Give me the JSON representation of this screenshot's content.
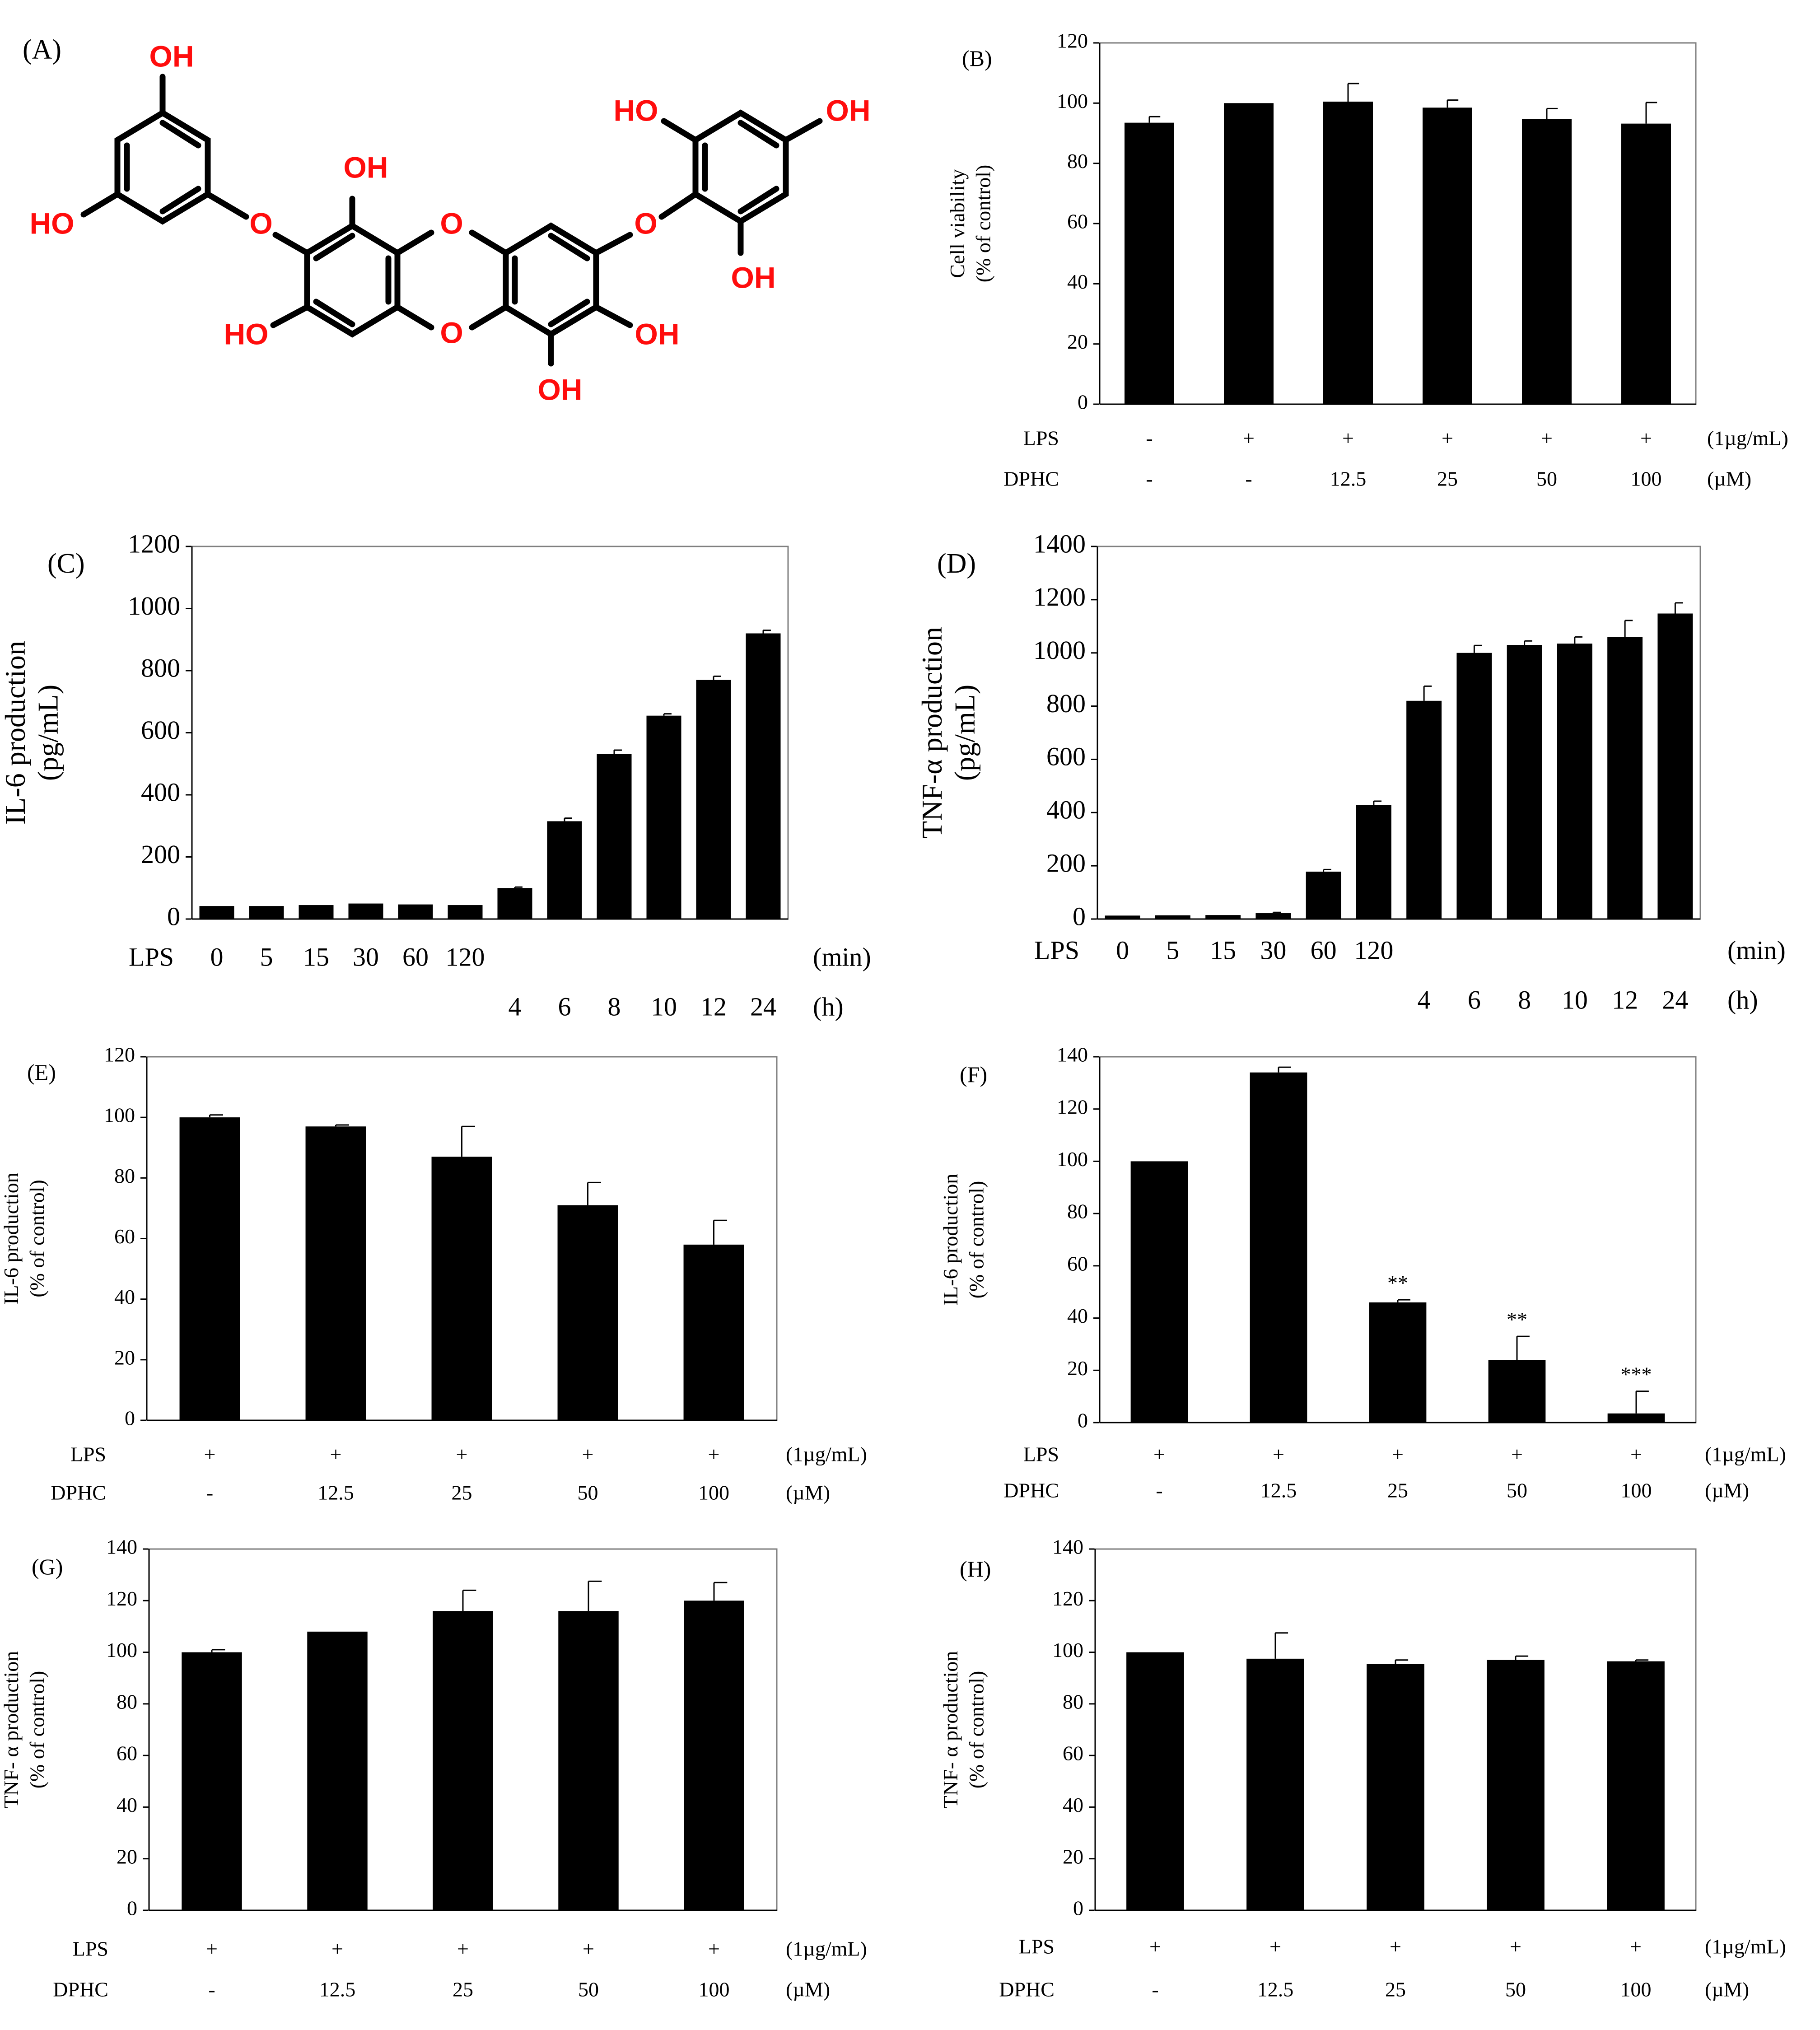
{
  "figure": {
    "panel_labels": [
      "(A)",
      "(B)",
      "(C)",
      "(D)",
      "(E)",
      "(F)",
      "(G)",
      "(H)"
    ]
  },
  "molecule": {
    "atom_labels": [
      "OH",
      "HO",
      "O",
      "OH",
      "O",
      "O",
      "O",
      "HO",
      "OH",
      "HO",
      "OH",
      "OH",
      "OH"
    ],
    "atom_color": "#ff0d0d",
    "bond_color": "#000000"
  },
  "chart_data": [
    {
      "id": "B",
      "type": "bar",
      "label": "(B)",
      "ylabel": [
        "Cell viability",
        "(% of control)"
      ],
      "ylim": [
        0,
        120
      ],
      "yticks": [
        0,
        20,
        40,
        60,
        80,
        100,
        120
      ],
      "values": [
        93.5,
        100,
        100.5,
        98.5,
        94.7,
        93.2
      ],
      "errors": [
        2,
        0,
        6,
        2.5,
        3.5,
        7
      ],
      "rows": [
        {
          "name": "LPS",
          "values": [
            "-",
            "+",
            "+",
            "+",
            "+",
            "+"
          ],
          "unit": "(1µg/mL)"
        },
        {
          "name": "DPHC",
          "values": [
            "-",
            "-",
            "12.5",
            "25",
            "50",
            "100"
          ],
          "unit": "(µM)"
        }
      ],
      "annotations": [
        "",
        "",
        "",
        "",
        "",
        ""
      ],
      "bar_color": "#000000"
    },
    {
      "id": "C",
      "type": "bar",
      "label": "(C)",
      "ylabel": [
        "IL-6 production",
        "(pg/mL)"
      ],
      "ylim": [
        0,
        1200
      ],
      "yticks": [
        0,
        200,
        400,
        600,
        800,
        1000,
        1200
      ],
      "values": [
        42,
        42,
        45,
        50,
        47,
        45,
        100,
        315,
        532,
        655,
        770,
        920
      ],
      "errors": [
        0,
        0,
        0,
        0,
        0,
        0,
        3,
        10,
        12,
        6,
        12,
        10
      ],
      "categories_min": [
        "0",
        "5",
        "15",
        "30",
        "60",
        "120"
      ],
      "categories_h": [
        "4",
        "6",
        "8",
        "10",
        "12",
        "24"
      ],
      "row_label": "LPS",
      "unit_min": "(min)",
      "unit_h": "(h)",
      "bar_color": "#000000"
    },
    {
      "id": "D",
      "type": "bar",
      "label": "(D)",
      "ylabel": [
        "TNF-α production",
        "(pg/mL)"
      ],
      "ylim": [
        0,
        1400
      ],
      "yticks": [
        0,
        200,
        400,
        600,
        800,
        1000,
        1200,
        1400
      ],
      "values": [
        13,
        14,
        15,
        22,
        178,
        428,
        820,
        1000,
        1030,
        1035,
        1060,
        1148
      ],
      "errors": [
        0,
        0,
        0,
        3,
        8,
        15,
        55,
        28,
        15,
        25,
        62,
        40
      ],
      "categories_min": [
        "0",
        "5",
        "15",
        "30",
        "60",
        "120"
      ],
      "categories_h": [
        "4",
        "6",
        "8",
        "10",
        "12",
        "24"
      ],
      "row_label": "LPS",
      "unit_min": "(min)",
      "unit_h": "(h)",
      "bar_color": "#000000"
    },
    {
      "id": "E",
      "type": "bar",
      "label": "(E)",
      "ylabel": [
        "IL-6 production",
        "(% of control)"
      ],
      "ylim": [
        0,
        120
      ],
      "yticks": [
        0,
        20,
        40,
        60,
        80,
        100,
        120
      ],
      "values": [
        100,
        97,
        87,
        71,
        58
      ],
      "errors": [
        0.8,
        0.5,
        10,
        7.5,
        8
      ],
      "rows": [
        {
          "name": "LPS",
          "values": [
            "+",
            "+",
            "+",
            "+",
            "+"
          ],
          "unit": "(1µg/mL)"
        },
        {
          "name": "DPHC",
          "values": [
            "-",
            "12.5",
            "25",
            "50",
            "100"
          ],
          "unit": "(µM)"
        }
      ],
      "annotations": [
        "",
        "",
        "",
        "",
        ""
      ],
      "bar_color": "#000000"
    },
    {
      "id": "F",
      "type": "bar",
      "label": "(F)",
      "ylabel": [
        "IL-6 production",
        "(% of control)"
      ],
      "ylim": [
        0,
        140
      ],
      "yticks": [
        0,
        20,
        40,
        60,
        80,
        100,
        120,
        140
      ],
      "values": [
        100,
        134,
        46,
        24,
        3.5
      ],
      "errors": [
        0,
        2,
        1,
        9,
        8.5
      ],
      "rows": [
        {
          "name": "LPS",
          "values": [
            "+",
            "+",
            "+",
            "+",
            "+"
          ],
          "unit": "(1µg/mL)"
        },
        {
          "name": "DPHC",
          "values": [
            "-",
            "12.5",
            "25",
            "50",
            "100"
          ],
          "unit": "(µM)"
        }
      ],
      "annotations": [
        "",
        "",
        "**",
        "**",
        "***"
      ],
      "bar_color": "#000000"
    },
    {
      "id": "G",
      "type": "bar",
      "label": "(G)",
      "ylabel": [
        "TNF- α production",
        "(% of control)"
      ],
      "ylim": [
        0,
        140
      ],
      "yticks": [
        0,
        20,
        40,
        60,
        80,
        100,
        120,
        140
      ],
      "values": [
        100,
        108,
        116,
        116,
        120
      ],
      "errors": [
        1,
        0,
        8,
        11.5,
        7
      ],
      "rows": [
        {
          "name": "LPS",
          "values": [
            "+",
            "+",
            "+",
            "+",
            "+"
          ],
          "unit": "(1µg/mL)"
        },
        {
          "name": "DPHC",
          "values": [
            "-",
            "12.5",
            "25",
            "50",
            "100"
          ],
          "unit": "(µM)"
        }
      ],
      "annotations": [
        "",
        "",
        "",
        "",
        ""
      ],
      "bar_color": "#000000"
    },
    {
      "id": "H",
      "type": "bar",
      "label": "(H)",
      "ylabel": [
        "TNF- α production",
        "(% of control)"
      ],
      "ylim": [
        0,
        140
      ],
      "yticks": [
        0,
        20,
        40,
        60,
        80,
        100,
        120,
        140
      ],
      "values": [
        100,
        97.5,
        95.5,
        97,
        96.5
      ],
      "errors": [
        0,
        10,
        1.5,
        1.5,
        0.5
      ],
      "rows": [
        {
          "name": "LPS",
          "values": [
            "+",
            "+",
            "+",
            "+",
            "+"
          ],
          "unit": "(1µg/mL)"
        },
        {
          "name": "DPHC",
          "values": [
            "-",
            "12.5",
            "25",
            "50",
            "100"
          ],
          "unit": "(µM)"
        }
      ],
      "annotations": [
        "",
        "",
        "",
        "",
        ""
      ],
      "bar_color": "#000000"
    }
  ]
}
